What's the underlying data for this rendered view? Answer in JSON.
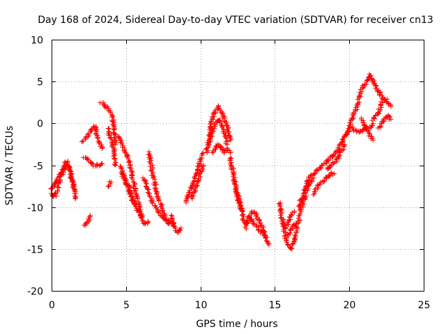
{
  "chart_data": {
    "type": "scatter",
    "title": "Day 168 of 2024, Sidereal Day-to-day VTEC variation (SDTVAR) for receiver cn13",
    "xlabel": "GPS time / hours",
    "ylabel": "SDTVAR / TECUs",
    "xlim": [
      0,
      25
    ],
    "ylim": [
      -20,
      10
    ],
    "xticks": [
      0,
      5,
      10,
      15,
      20,
      25
    ],
    "yticks": [
      -20,
      -15,
      -10,
      -5,
      0,
      5,
      10
    ],
    "grid": true,
    "marker": "+",
    "marker_color": "#ff0000",
    "series": [
      {
        "name": "SDTVAR",
        "color": "#ff0000",
        "tracks": [
          {
            "points": [
              [
                0.0,
                -8.5
              ],
              [
                0.2,
                -8.8
              ],
              [
                0.4,
                -8.0
              ],
              [
                0.6,
                -6.5
              ],
              [
                0.8,
                -5.5
              ],
              [
                1.0,
                -4.5
              ],
              [
                1.2,
                -5.5
              ],
              [
                1.4,
                -7.0
              ],
              [
                1.5,
                -7.8
              ]
            ]
          },
          {
            "points": [
              [
                0.0,
                -7.8
              ],
              [
                0.3,
                -7.0
              ],
              [
                0.6,
                -6.0
              ],
              [
                0.9,
                -5.2
              ],
              [
                1.1,
                -5.0
              ],
              [
                1.3,
                -6.0
              ],
              [
                1.5,
                -7.5
              ],
              [
                1.6,
                -8.5
              ],
              [
                1.6,
                -9.0
              ]
            ]
          },
          {
            "points": [
              [
                2.2,
                -12.3
              ],
              [
                2.4,
                -11.8
              ],
              [
                2.6,
                -11.0
              ]
            ]
          },
          {
            "points": [
              [
                2.1,
                -2.2
              ],
              [
                2.4,
                -1.5
              ],
              [
                2.7,
                -0.8
              ],
              [
                2.9,
                -0.3
              ],
              [
                3.0,
                -1.0
              ],
              [
                3.2,
                -2.0
              ],
              [
                3.4,
                -3.0
              ]
            ]
          },
          {
            "points": [
              [
                2.2,
                -4.0
              ],
              [
                2.5,
                -4.5
              ],
              [
                2.8,
                -5.0
              ],
              [
                3.1,
                -5.0
              ],
              [
                3.4,
                -4.8
              ]
            ]
          },
          {
            "points": [
              [
                3.3,
                2.5
              ],
              [
                3.6,
                2.2
              ],
              [
                3.9,
                1.5
              ],
              [
                4.1,
                0.5
              ],
              [
                4.2,
                -1.0
              ],
              [
                4.3,
                -2.5
              ]
            ]
          },
          {
            "points": [
              [
                3.8,
                -0.5
              ],
              [
                4.0,
                -2.0
              ],
              [
                4.2,
                -3.5
              ],
              [
                4.3,
                -5.0
              ]
            ]
          },
          {
            "points": [
              [
                3.8,
                -7.5
              ],
              [
                4.0,
                -7.0
              ]
            ]
          },
          {
            "points": [
              [
                4.5,
                -1.5
              ],
              [
                4.7,
                -2.5
              ],
              [
                5.0,
                -3.5
              ],
              [
                5.3,
                -5.0
              ],
              [
                5.5,
                -7.0
              ],
              [
                5.8,
                -9.0
              ],
              [
                6.0,
                -11.0
              ],
              [
                6.2,
                -12.0
              ],
              [
                6.5,
                -11.8
              ]
            ]
          },
          {
            "points": [
              [
                4.6,
                -5.0
              ],
              [
                4.9,
                -6.5
              ],
              [
                5.2,
                -8.0
              ],
              [
                5.5,
                -9.5
              ],
              [
                5.8,
                -10.5
              ],
              [
                6.1,
                -11.2
              ]
            ]
          },
          {
            "points": [
              [
                4.7,
                -6.0
              ],
              [
                5.0,
                -7.0
              ],
              [
                5.3,
                -8.0
              ],
              [
                5.6,
                -9.5
              ]
            ]
          },
          {
            "points": [
              [
                6.5,
                -3.5
              ],
              [
                6.7,
                -5.0
              ],
              [
                6.9,
                -7.0
              ],
              [
                7.1,
                -8.5
              ],
              [
                7.3,
                -9.5
              ],
              [
                7.5,
                -10.5
              ],
              [
                7.7,
                -11.5
              ],
              [
                7.9,
                -12.0
              ]
            ]
          },
          {
            "points": [
              [
                6.2,
                -6.5
              ],
              [
                6.5,
                -8.0
              ],
              [
                6.8,
                -9.5
              ],
              [
                7.1,
                -10.5
              ],
              [
                7.4,
                -11.0
              ],
              [
                7.7,
                -11.5
              ],
              [
                8.0,
                -11.8
              ],
              [
                8.2,
                -12.0
              ]
            ]
          },
          {
            "points": [
              [
                8.0,
                -11.0
              ],
              [
                8.2,
                -12.0
              ],
              [
                8.4,
                -12.8
              ],
              [
                8.6,
                -13.0
              ],
              [
                8.7,
                -12.5
              ]
            ]
          },
          {
            "points": [
              [
                9.0,
                -9.5
              ],
              [
                9.2,
                -8.5
              ],
              [
                9.4,
                -7.5
              ],
              [
                9.6,
                -6.5
              ],
              [
                9.8,
                -5.5
              ],
              [
                10.0,
                -4.5
              ],
              [
                10.2,
                -3.5
              ]
            ]
          },
          {
            "points": [
              [
                9.4,
                -9.0
              ],
              [
                9.6,
                -8.0
              ],
              [
                9.8,
                -7.0
              ],
              [
                10.0,
                -6.0
              ],
              [
                10.2,
                -5.0
              ]
            ]
          },
          {
            "points": [
              [
                10.4,
                -3.5
              ],
              [
                10.6,
                -1.5
              ],
              [
                10.8,
                0.5
              ],
              [
                11.0,
                1.5
              ],
              [
                11.2,
                2.0
              ],
              [
                11.4,
                1.5
              ],
              [
                11.6,
                0.5
              ],
              [
                11.8,
                -0.5
              ],
              [
                12.0,
                -2.0
              ]
            ]
          },
          {
            "points": [
              [
                10.6,
                -2.5
              ],
              [
                10.8,
                -1.0
              ],
              [
                11.0,
                0.0
              ],
              [
                11.2,
                0.5
              ],
              [
                11.4,
                0.0
              ],
              [
                11.6,
                -1.0
              ],
              [
                11.8,
                -2.5
              ]
            ]
          },
          {
            "points": [
              [
                10.8,
                -3.5
              ],
              [
                11.0,
                -3.0
              ],
              [
                11.2,
                -2.5
              ],
              [
                11.4,
                -3.0
              ],
              [
                11.6,
                -3.5
              ],
              [
                11.8,
                -3.0
              ],
              [
                12.0,
                -3.5
              ]
            ]
          },
          {
            "points": [
              [
                12.0,
                -4.0
              ],
              [
                12.2,
                -6.0
              ],
              [
                12.4,
                -8.0
              ],
              [
                12.6,
                -9.5
              ],
              [
                12.8,
                -10.5
              ]
            ]
          },
          {
            "points": [
              [
                12.3,
                -7.0
              ],
              [
                12.5,
                -8.5
              ],
              [
                12.7,
                -10.0
              ],
              [
                12.9,
                -11.5
              ],
              [
                13.1,
                -12.0
              ]
            ]
          },
          {
            "points": [
              [
                13.0,
                -12.5
              ],
              [
                13.3,
                -11.0
              ],
              [
                13.6,
                -10.5
              ],
              [
                13.9,
                -11.5
              ],
              [
                14.2,
                -12.5
              ],
              [
                14.5,
                -14.0
              ],
              [
                14.6,
                -14.5
              ]
            ]
          },
          {
            "points": [
              [
                13.2,
                -11.0
              ],
              [
                13.5,
                -11.8
              ],
              [
                13.8,
                -12.5
              ],
              [
                14.1,
                -13.0
              ],
              [
                14.4,
                -13.5
              ]
            ]
          },
          {
            "points": [
              [
                15.3,
                -9.5
              ],
              [
                15.5,
                -11.5
              ],
              [
                15.7,
                -13.5
              ],
              [
                15.9,
                -14.5
              ],
              [
                16.1,
                -15.0
              ],
              [
                16.3,
                -14.0
              ],
              [
                16.5,
                -12.5
              ]
            ]
          },
          {
            "points": [
              [
                15.5,
                -12.0
              ],
              [
                15.7,
                -12.5
              ],
              [
                15.9,
                -12.0
              ],
              [
                16.1,
                -11.0
              ],
              [
                16.3,
                -10.5
              ]
            ]
          },
          {
            "points": [
              [
                15.8,
                -13.5
              ],
              [
                16.0,
                -13.0
              ],
              [
                16.2,
                -12.5
              ],
              [
                16.4,
                -12.0
              ]
            ]
          },
          {
            "points": [
              [
                16.4,
                -12.5
              ],
              [
                16.6,
                -11.5
              ],
              [
                16.8,
                -10.0
              ],
              [
                17.0,
                -9.0
              ],
              [
                17.2,
                -7.5
              ],
              [
                17.4,
                -7.0
              ],
              [
                17.6,
                -6.5
              ]
            ]
          },
          {
            "points": [
              [
                16.6,
                -10.0
              ],
              [
                16.8,
                -9.0
              ],
              [
                17.0,
                -8.0
              ],
              [
                17.3,
                -6.5
              ],
              [
                17.6,
                -6.0
              ],
              [
                17.9,
                -5.5
              ],
              [
                18.2,
                -5.0
              ]
            ]
          },
          {
            "points": [
              [
                17.6,
                -8.5
              ],
              [
                17.9,
                -7.5
              ],
              [
                18.2,
                -7.0
              ],
              [
                18.5,
                -6.5
              ],
              [
                18.8,
                -6.0
              ],
              [
                19.0,
                -6.0
              ]
            ]
          },
          {
            "points": [
              [
                18.2,
                -5.0
              ],
              [
                18.5,
                -4.5
              ],
              [
                18.8,
                -4.0
              ],
              [
                19.1,
                -3.5
              ],
              [
                19.4,
                -2.5
              ],
              [
                19.7,
                -1.5
              ],
              [
                20.0,
                -1.0
              ]
            ]
          },
          {
            "points": [
              [
                18.5,
                -5.5
              ],
              [
                18.8,
                -5.0
              ],
              [
                19.1,
                -4.5
              ],
              [
                19.4,
                -3.5
              ],
              [
                19.7,
                -2.5
              ]
            ]
          },
          {
            "points": [
              [
                19.8,
                -1.5
              ],
              [
                20.0,
                -0.5
              ],
              [
                20.2,
                0.5
              ],
              [
                20.4,
                1.5
              ],
              [
                20.6,
                2.5
              ],
              [
                20.8,
                4.0
              ],
              [
                21.0,
                4.5
              ],
              [
                21.2,
                5.0
              ],
              [
                21.4,
                5.8
              ],
              [
                21.6,
                5.0
              ],
              [
                21.8,
                4.2
              ],
              [
                22.0,
                3.8
              ],
              [
                22.2,
                3.0
              ]
            ]
          },
          {
            "points": [
              [
                20.2,
                -0.5
              ],
              [
                20.5,
                -1.0
              ],
              [
                20.8,
                -1.0
              ],
              [
                21.1,
                -0.5
              ],
              [
                21.4,
                -0.5
              ],
              [
                21.6,
                0.0
              ]
            ]
          },
          {
            "points": [
              [
                20.8,
                0.5
              ],
              [
                21.1,
                -0.5
              ],
              [
                21.4,
                -1.5
              ],
              [
                21.6,
                -2.0
              ]
            ]
          },
          {
            "points": [
              [
                21.6,
                0.5
              ],
              [
                21.8,
                1.0
              ],
              [
                22.0,
                1.5
              ],
              [
                22.2,
                2.5
              ],
              [
                22.4,
                3.0
              ],
              [
                22.6,
                2.5
              ],
              [
                22.8,
                2.0
              ]
            ]
          },
          {
            "points": [
              [
                22.0,
                -0.5
              ],
              [
                22.2,
                0.0
              ],
              [
                22.4,
                0.5
              ],
              [
                22.6,
                1.0
              ],
              [
                22.8,
                0.5
              ]
            ]
          }
        ]
      }
    ]
  }
}
